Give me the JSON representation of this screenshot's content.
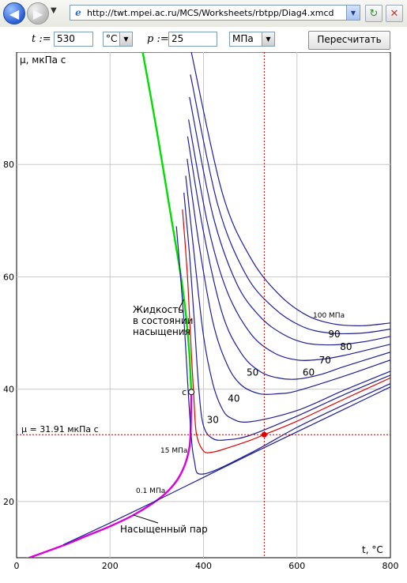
{
  "browser": {
    "url": "http://twt.mpei.ac.ru/MCS/Worksheets/rbtpp/Diag4.xmcd",
    "back_icon": "arrow-left-icon",
    "forward_icon": "arrow-right-icon"
  },
  "controls": {
    "t_label": "t :=",
    "t_value": "530",
    "t_unit": "°C",
    "p_label": "p :=",
    "p_value": "25",
    "p_unit": "МПа",
    "recalc_label": "Пересчитать"
  },
  "chart_data": {
    "type": "line",
    "ylabel": "μ, мкПа с",
    "xlabel": "t, °C",
    "xlim": [
      0,
      800
    ],
    "ylim": [
      10,
      100
    ],
    "xticks": [
      0,
      200,
      400,
      600,
      800
    ],
    "yticks": [
      20,
      40,
      60,
      80
    ],
    "grid": true,
    "critical_point": {
      "label": "c",
      "x": 374,
      "y": 39.5
    },
    "current_point": {
      "t": 530,
      "mu": 31.91
    },
    "mu_readout": "μ = 31.91 мкПа с",
    "annotations": {
      "liquid": [
        "Жидкость",
        "в состоянии",
        "насыщения"
      ],
      "vapor": "Насыщенный пар",
      "p100": "100 МПа",
      "p15": "15 МПа",
      "p01": "0.1 МПа"
    },
    "pressure_labels": [
      {
        "text": "90",
        "x": 680,
        "y": 49.2
      },
      {
        "text": "80",
        "x": 705,
        "y": 47.0
      },
      {
        "text": "70",
        "x": 660,
        "y": 44.6
      },
      {
        "text": "60",
        "x": 625,
        "y": 42.4
      },
      {
        "text": "50",
        "x": 505,
        "y": 42.4
      },
      {
        "text": "40",
        "x": 465,
        "y": 37.8
      },
      {
        "text": "30",
        "x": 420,
        "y": 34.0
      }
    ],
    "series": [
      {
        "name": "saturated liquid",
        "color": "#00dd00",
        "x": [
          270,
          300,
          330,
          350,
          360,
          365,
          370,
          374
        ],
        "y": [
          100,
          86,
          71,
          61,
          55,
          51,
          46,
          39.5
        ]
      },
      {
        "name": "saturated vapor",
        "color": "#dd00dd",
        "x": [
          0,
          100,
          150,
          200,
          250,
          300,
          330,
          350,
          365,
          372,
          374
        ],
        "y": [
          9.2,
          12.2,
          13.9,
          15.6,
          17.6,
          20.2,
          22.4,
          24.7,
          27.8,
          31.5,
          39.5
        ]
      },
      {
        "name": "0.1 МПа",
        "color": "#1e1e9b",
        "x": [
          100,
          200,
          300,
          400,
          500,
          600,
          700,
          800
        ],
        "y": [
          12.3,
          16.2,
          20.2,
          24.3,
          28.4,
          32.4,
          36.4,
          40.4
        ]
      },
      {
        "name": "15 МПа",
        "color": "#1e1e9b",
        "x": [
          342,
          350,
          360,
          370,
          380,
          400,
          500,
          600,
          700,
          800
        ],
        "y": [
          69.0,
          61.0,
          50.0,
          36.0,
          27.4,
          24.9,
          28.6,
          33.2,
          37.2,
          41.0
        ]
      },
      {
        "name": "25 МПа",
        "color": "#e00000",
        "x": [
          355,
          365,
          370,
          375,
          380,
          385,
          400,
          420,
          450,
          500,
          530,
          600,
          700,
          800
        ],
        "y": [
          72.0,
          61.0,
          53.0,
          45.0,
          37.5,
          32.0,
          29.0,
          28.8,
          29.5,
          30.9,
          31.91,
          34.3,
          38.2,
          42.0
        ]
      },
      {
        "name": "30 МПа",
        "color": "#1e1e9b",
        "x": [
          358,
          370,
          380,
          390,
          400,
          420,
          450,
          500,
          600,
          700,
          800
        ],
        "y": [
          75.0,
          64.0,
          52.5,
          40.0,
          33.5,
          31.2,
          31.0,
          31.8,
          35.2,
          39.0,
          42.5
        ]
      },
      {
        "name": "40 МПа",
        "color": "#1e1e9b",
        "x": [
          362,
          380,
          400,
          420,
          440,
          460,
          500,
          600,
          700,
          800
        ],
        "y": [
          78.0,
          64.0,
          49.5,
          41.0,
          36.5,
          34.8,
          34.2,
          36.2,
          39.8,
          43.2
        ]
      },
      {
        "name": "50 МПа",
        "color": "#1e1e9b",
        "x": [
          365,
          390,
          420,
          450,
          480,
          520,
          560,
          600,
          700,
          800
        ],
        "y": [
          81.0,
          66.0,
          52.0,
          44.5,
          40.8,
          39.2,
          39.2,
          39.7,
          42.3,
          45.2
        ]
      },
      {
        "name": "60 МПа",
        "color": "#1e1e9b",
        "x": [
          366,
          400,
          440,
          480,
          520,
          560,
          600,
          650,
          700,
          800
        ],
        "y": [
          85.0,
          68.0,
          53.5,
          46.5,
          43.2,
          42.0,
          41.8,
          42.6,
          44.0,
          46.6
        ]
      },
      {
        "name": "70 МПа",
        "color": "#1e1e9b",
        "x": [
          368,
          410,
          450,
          500,
          550,
          600,
          650,
          700,
          800
        ],
        "y": [
          88.0,
          69.0,
          57.5,
          50.0,
          46.5,
          45.2,
          45.3,
          46.0,
          48.0
        ]
      },
      {
        "name": "80 МПа",
        "color": "#1e1e9b",
        "x": [
          370,
          420,
          470,
          520,
          570,
          620,
          680,
          740,
          800
        ],
        "y": [
          92.0,
          71.0,
          59.0,
          53.0,
          49.8,
          48.2,
          47.9,
          48.4,
          49.4
        ]
      },
      {
        "name": "90 МПа",
        "color": "#1e1e9b",
        "x": [
          372,
          430,
          490,
          550,
          610,
          670,
          740,
          800
        ],
        "y": [
          96.0,
          73.0,
          60.5,
          54.5,
          51.2,
          50.0,
          50.0,
          50.7
        ]
      },
      {
        "name": "100 МПа",
        "color": "#1e1e9b",
        "x": [
          374,
          440,
          500,
          560,
          620,
          680,
          740,
          800
        ],
        "y": [
          100.0,
          75.0,
          63.5,
          57.0,
          53.2,
          51.6,
          51.3,
          51.8
        ]
      }
    ]
  }
}
